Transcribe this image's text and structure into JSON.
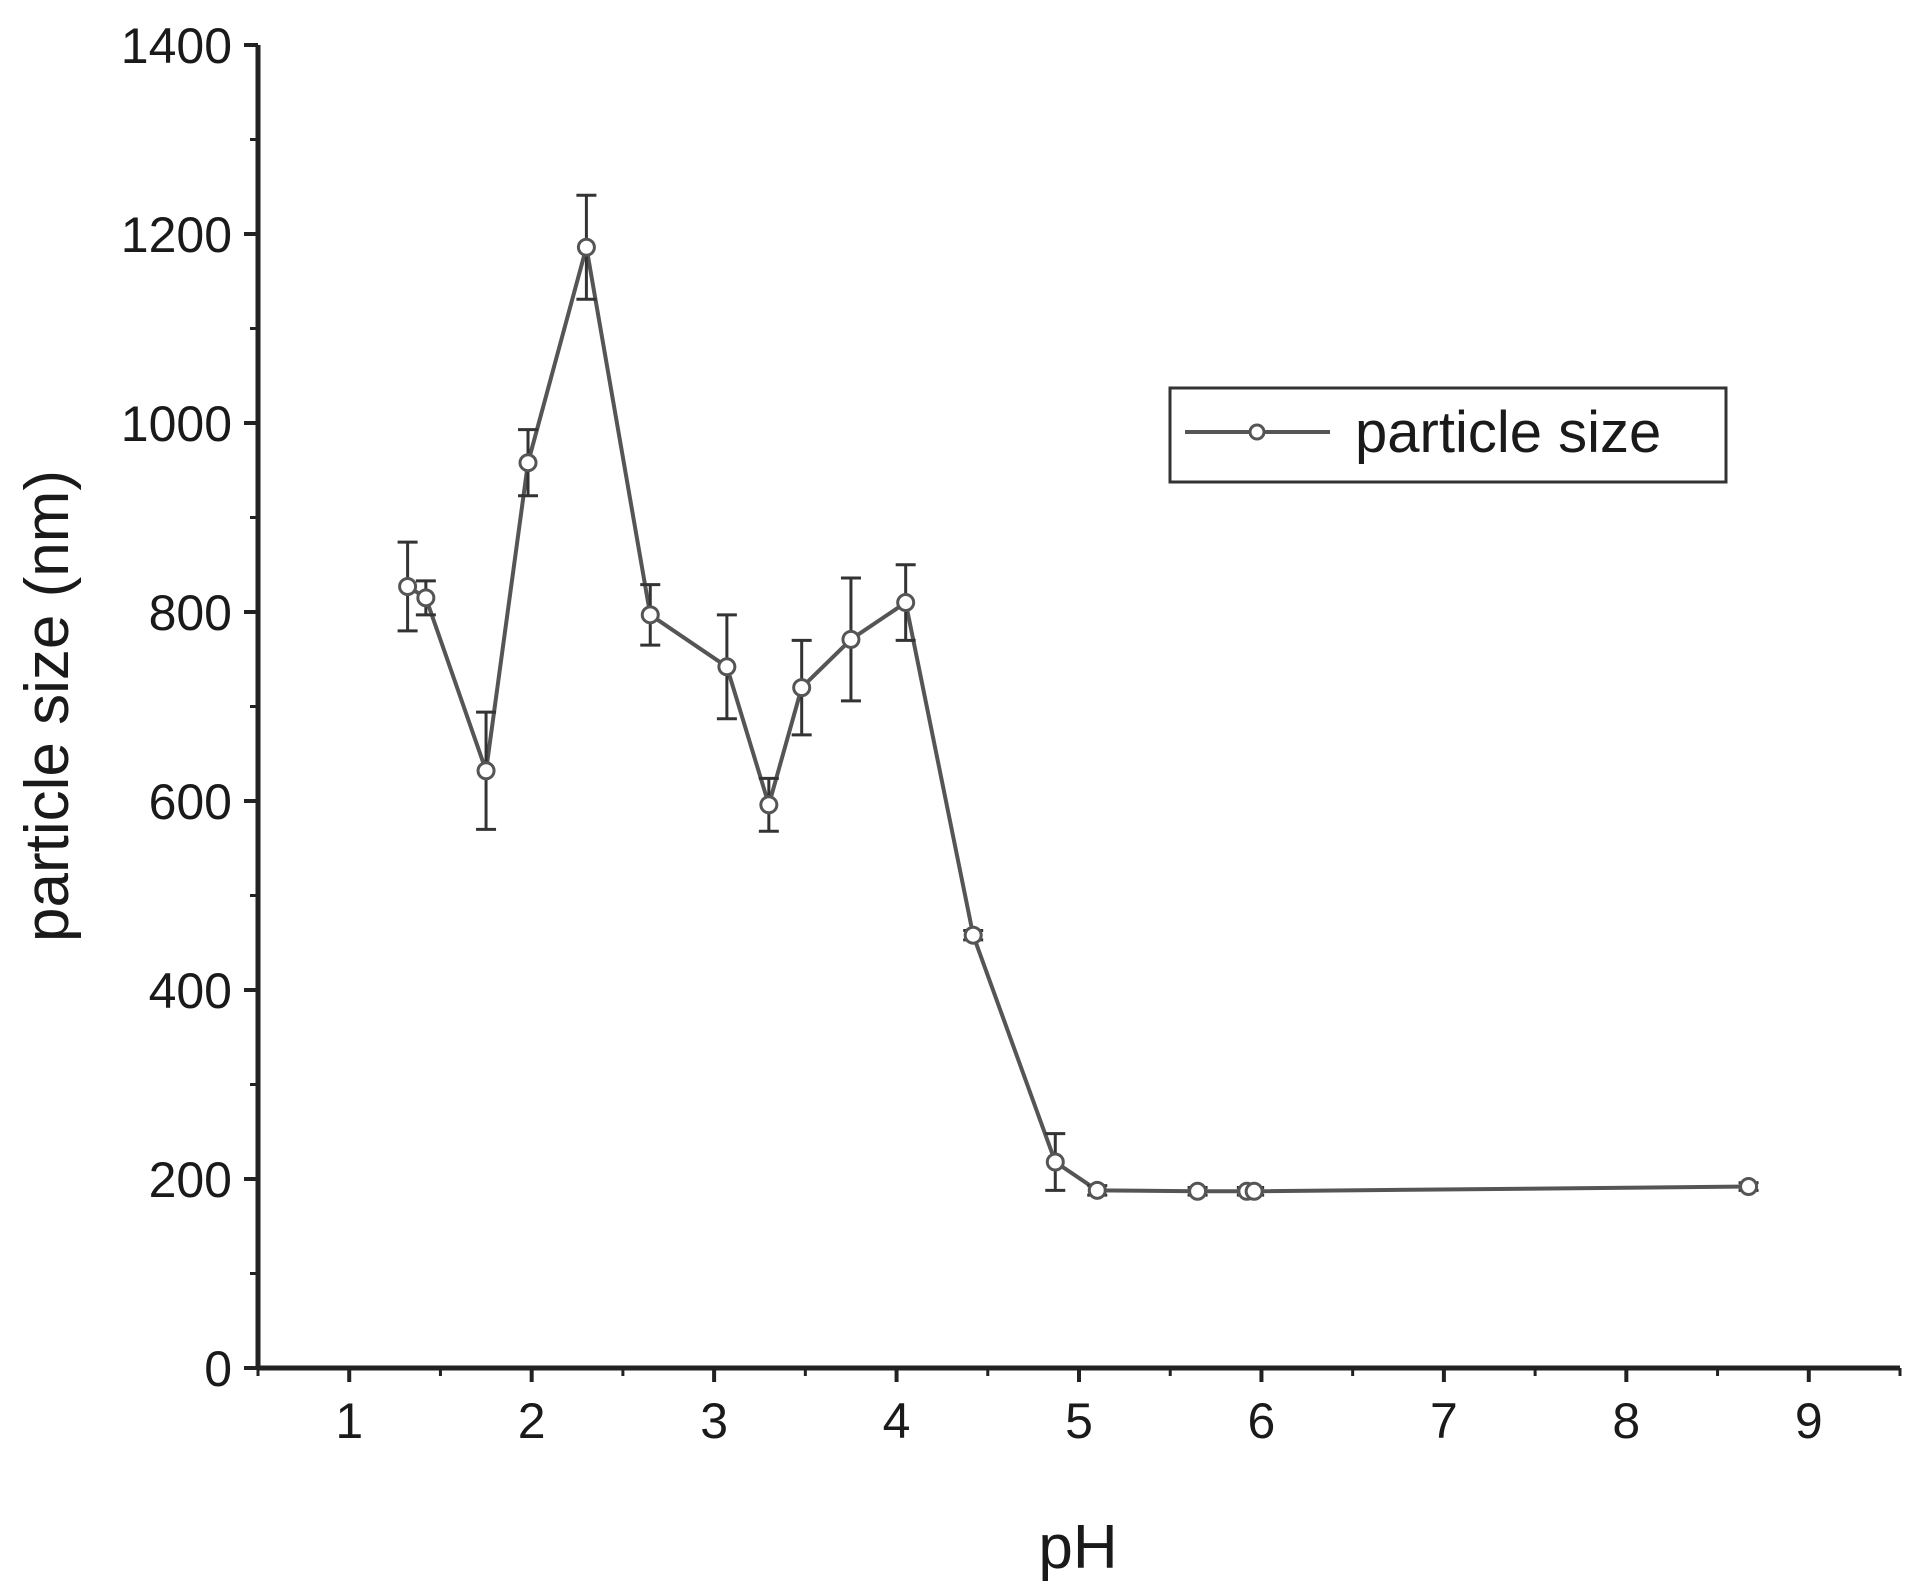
{
  "chart_data": {
    "type": "line",
    "xlabel": "pH",
    "ylabel": "particle size (nm)",
    "xlim": [
      0.5,
      9.5
    ],
    "ylim": [
      0,
      1400
    ],
    "x_ticks": [
      1,
      2,
      3,
      4,
      5,
      6,
      7,
      8,
      9
    ],
    "y_ticks": [
      0,
      200,
      400,
      600,
      800,
      1000,
      1200,
      1400
    ],
    "x_tick_labels": [
      "1",
      "2",
      "3",
      "4",
      "5",
      "6",
      "7",
      "8",
      "9"
    ],
    "y_tick_labels": [
      "0",
      "200",
      "400",
      "600",
      "800",
      "1000",
      "1200",
      "1400"
    ],
    "grid": false,
    "legend": {
      "position": "top-right"
    },
    "series": [
      {
        "name": "particle size",
        "color": "#555555",
        "marker": "open-circle",
        "points": [
          {
            "x": 1.32,
            "y": 827,
            "err": 47
          },
          {
            "x": 1.42,
            "y": 815,
            "err": 18
          },
          {
            "x": 1.75,
            "y": 632,
            "err": 62
          },
          {
            "x": 1.98,
            "y": 958,
            "err": 35
          },
          {
            "x": 2.3,
            "y": 1186,
            "err": 55
          },
          {
            "x": 2.65,
            "y": 797,
            "err": 32
          },
          {
            "x": 3.07,
            "y": 742,
            "err": 55
          },
          {
            "x": 3.3,
            "y": 596,
            "err": 28
          },
          {
            "x": 3.48,
            "y": 720,
            "err": 50
          },
          {
            "x": 3.75,
            "y": 771,
            "err": 65
          },
          {
            "x": 4.05,
            "y": 810,
            "err": 40
          },
          {
            "x": 4.42,
            "y": 458,
            "err": 5
          },
          {
            "x": 4.87,
            "y": 218,
            "err": 30
          },
          {
            "x": 5.1,
            "y": 188,
            "err": 5
          },
          {
            "x": 5.65,
            "y": 187,
            "err": 4
          },
          {
            "x": 5.92,
            "y": 187,
            "err": 4
          },
          {
            "x": 5.96,
            "y": 187,
            "err": 4
          },
          {
            "x": 8.67,
            "y": 192,
            "err": 4
          }
        ]
      }
    ]
  }
}
